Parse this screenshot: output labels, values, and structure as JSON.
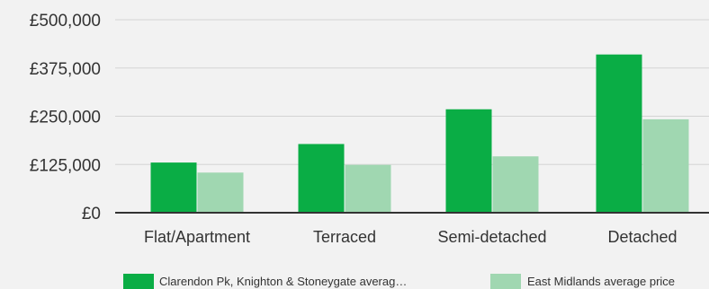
{
  "colors": {
    "background": "#f2f2f2",
    "grid": "#d4d4d4",
    "axis": "#333333",
    "series_primary": "#0aad45",
    "series_secondary": "#a0d7b1"
  },
  "chart_data": {
    "type": "bar",
    "categories": [
      "Flat/Apartment",
      "Terraced",
      "Semi-detached",
      "Detached"
    ],
    "series": [
      {
        "name": "Clarendon Pk, Knighton & Stoneygate averag…",
        "color": "#0aad45",
        "values": [
          130000,
          178000,
          268000,
          410000
        ]
      },
      {
        "name": "East Midlands average price",
        "color": "#a0d7b1",
        "values": [
          104000,
          124000,
          146000,
          242000
        ]
      }
    ],
    "yticks": [
      {
        "value": 0,
        "label": "£0"
      },
      {
        "value": 125000,
        "label": "£125,000"
      },
      {
        "value": 250000,
        "label": "£250,000"
      },
      {
        "value": 375000,
        "label": "£375,000"
      },
      {
        "value": 500000,
        "label": "£500,000"
      }
    ],
    "ylim": [
      0,
      500000
    ],
    "grid": true,
    "legend_position": "bottom"
  }
}
